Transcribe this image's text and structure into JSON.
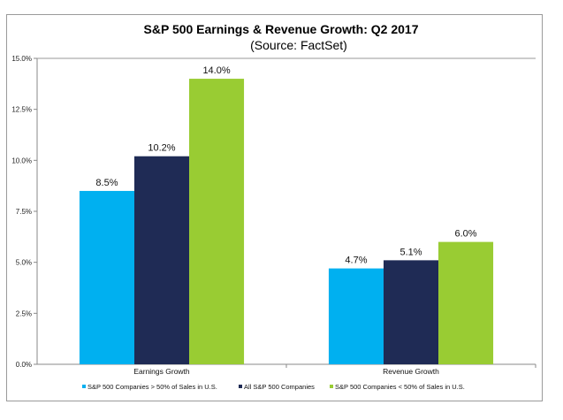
{
  "chart_data": {
    "type": "bar",
    "title": "S&P 500 Earnings & Revenue Growth:  Q2 2017",
    "subtitle": "(Source: FactSet)",
    "categories": [
      "Earnings Growth",
      "Revenue Growth"
    ],
    "series": [
      {
        "name": "S&P 500 Companies > 50% of Sales in U.S.",
        "color": "#00b0f0",
        "values": [
          8.5,
          4.7
        ],
        "labels": [
          "8.5%",
          "4.7%"
        ]
      },
      {
        "name": "All S&P 500 Companies",
        "color": "#1f2b55",
        "values": [
          10.2,
          5.1
        ],
        "labels": [
          "10.2%",
          "5.1%"
        ]
      },
      {
        "name": "S&P 500 Companies < 50% of Sales in U.S.",
        "color": "#99cc33",
        "values": [
          14.0,
          6.0
        ],
        "labels": [
          "14.0%",
          "6.0%"
        ]
      }
    ],
    "ylim": [
      0,
      15
    ],
    "yticks": [
      "0.0%",
      "2.5%",
      "5.0%",
      "7.5%",
      "10.0%",
      "12.5%",
      "15.0%"
    ],
    "ytick_values": [
      0,
      2.5,
      5,
      7.5,
      10,
      12.5,
      15
    ],
    "grid": false,
    "legend": "bottom",
    "xlabel": "",
    "ylabel": ""
  }
}
